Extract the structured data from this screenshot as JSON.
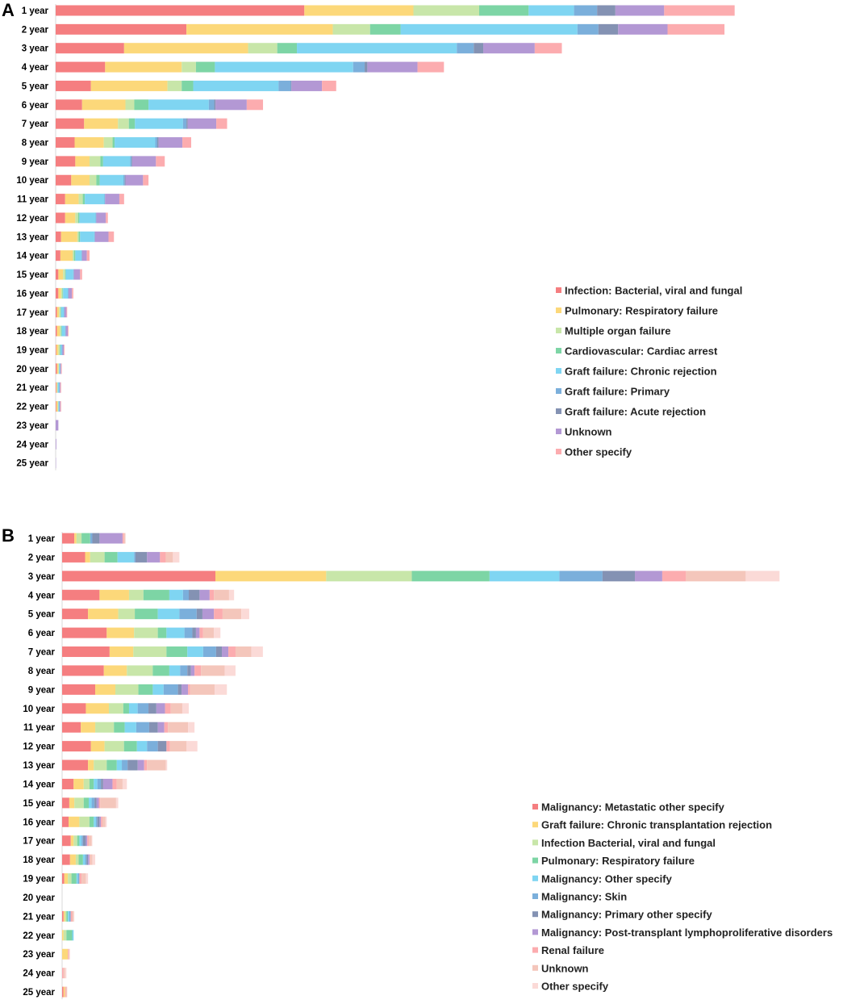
{
  "chart_data": [
    {
      "type": "bar",
      "orientation": "horizontal",
      "stacked": true,
      "panel_label": "A",
      "title": "",
      "xlabel": "",
      "ylabel": "",
      "legend_position": "right",
      "xlim": [
        0,
        1
      ],
      "categories": [
        "1 year",
        "2 year",
        "3 year",
        "4 year",
        "5 year",
        "6 year",
        "7 year",
        "8 year",
        "9 year",
        "10 year",
        "11 year",
        "12 year",
        "13 year",
        "14 year",
        "15 year",
        "16 year",
        "17 year",
        "18 year",
        "19 year",
        "20 year",
        "21 year",
        "22 year",
        "23 year",
        "24 year",
        "25 year"
      ],
      "series": [
        {
          "name": "Infection: Bacterial, viral and fungal",
          "color": "#f57e80",
          "values": [
            0.367,
            0.193,
            0.101,
            0.073,
            0.052,
            0.039,
            0.042,
            0.028,
            0.029,
            0.023,
            0.014,
            0.014,
            0.008,
            0.007,
            0.004,
            0.004,
            0.002,
            0.002,
            0.001,
            0.002,
            0.001,
            0.001,
            0,
            0,
            0
          ]
        },
        {
          "name": "Pulmonary: Respiratory failure",
          "color": "#fcd87a",
          "values": [
            0.161,
            0.216,
            0.183,
            0.113,
            0.113,
            0.064,
            0.05,
            0.043,
            0.021,
            0.027,
            0.02,
            0.015,
            0.024,
            0.018,
            0.007,
            0.004,
            0.003,
            0.004,
            0.003,
            0.002,
            0.001,
            0.002,
            0,
            0,
            0
          ]
        },
        {
          "name": "Multiple organ failure",
          "color": "#c8e6a9",
          "values": [
            0.097,
            0.055,
            0.043,
            0.021,
            0.021,
            0.013,
            0.016,
            0.013,
            0.016,
            0.01,
            0.006,
            0.004,
            0.002,
            0.002,
            0.003,
            0.002,
            0.002,
            0.002,
            0.002,
            0.001,
            0.001,
            0.001,
            0,
            0,
            0
          ]
        },
        {
          "name": "Cardiovascular: Cardiac arrest",
          "color": "#7dd5a5",
          "values": [
            0.073,
            0.045,
            0.029,
            0.028,
            0.017,
            0.021,
            0.009,
            0.003,
            0.004,
            0.005,
            0.003,
            0.002,
            0.002,
            0.002,
            0.001,
            0.001,
            0.001,
            0.001,
            0.001,
            0,
            0,
            0,
            0,
            0,
            0
          ]
        },
        {
          "name": "Graft failure: Chronic rejection",
          "color": "#7fd5f2",
          "values": [
            0.067,
            0.261,
            0.236,
            0.204,
            0.126,
            0.089,
            0.071,
            0.06,
            0.04,
            0.035,
            0.029,
            0.024,
            0.021,
            0.009,
            0.011,
            0.007,
            0.004,
            0.005,
            0.002,
            0.001,
            0.002,
            0.001,
            0,
            0,
            0
          ]
        },
        {
          "name": "Graft failure: Primary",
          "color": "#7bafdb",
          "values": [
            0.034,
            0.031,
            0.025,
            0.017,
            0.018,
            0.008,
            0.005,
            0.003,
            0.002,
            0.002,
            0.001,
            0.001,
            0.001,
            0.001,
            0.001,
            0.001,
            0.001,
            0.001,
            0.001,
            0.001,
            0.001,
            0.001,
            0,
            0,
            0
          ]
        },
        {
          "name": "Graft failure: Acute rejection",
          "color": "#8492b3",
          "values": [
            0.027,
            0.029,
            0.014,
            0.004,
            0.001,
            0.002,
            0.002,
            0.002,
            0.001,
            0.001,
            0,
            0,
            0,
            0,
            0,
            0,
            0,
            0,
            0,
            0,
            0,
            0,
            0,
            0,
            0
          ]
        },
        {
          "name": "Unknown",
          "color": "#b398d4",
          "values": [
            0.072,
            0.073,
            0.076,
            0.074,
            0.045,
            0.046,
            0.042,
            0.035,
            0.035,
            0.026,
            0.021,
            0.014,
            0.02,
            0.007,
            0.009,
            0.005,
            0.003,
            0.003,
            0.002,
            0.001,
            0.001,
            0.001,
            0.004,
            0.001,
            0.0005
          ]
        },
        {
          "name": "Other specify",
          "color": "#fcacaf",
          "values": [
            0.104,
            0.084,
            0.04,
            0.039,
            0.021,
            0.024,
            0.016,
            0.013,
            0.013,
            0.008,
            0.007,
            0.003,
            0.008,
            0.004,
            0.003,
            0.002,
            0.001,
            0.001,
            0.001,
            0.001,
            0.001,
            0.001,
            0,
            0,
            0
          ]
        }
      ]
    },
    {
      "type": "bar",
      "orientation": "horizontal",
      "stacked": true,
      "panel_label": "B",
      "title": "",
      "xlabel": "",
      "ylabel": "",
      "legend_position": "right",
      "xlim": [
        0,
        1
      ],
      "categories": [
        "1 year",
        "2 year",
        "3 year",
        "4 year",
        "5 year",
        "6 year",
        "7 year",
        "8 year",
        "9 year",
        "10 year",
        "11 year",
        "12 year",
        "13 year",
        "14 year",
        "15 year",
        "16 year",
        "17 year",
        "18 year",
        "19 year",
        "20 year",
        "21 year",
        "22 year",
        "23 year",
        "24 year",
        "25 year"
      ],
      "series": [
        {
          "name": "Malignancy: Metastatic other specify",
          "color": "#f57e80",
          "values": [
            0.017,
            0.032,
            0.213,
            0.052,
            0.036,
            0.062,
            0.066,
            0.058,
            0.046,
            0.033,
            0.026,
            0.04,
            0.036,
            0.016,
            0.01,
            0.009,
            0.012,
            0.011,
            0.003,
            0,
            0.002,
            0,
            0,
            0,
            0.002
          ]
        },
        {
          "name": "Graft failure: Chronic transplantation rejection",
          "color": "#fcd87a",
          "values": [
            0.003,
            0.007,
            0.154,
            0.041,
            0.042,
            0.038,
            0.033,
            0.032,
            0.028,
            0.032,
            0.02,
            0.019,
            0.008,
            0.014,
            0.007,
            0.015,
            0.004,
            0.008,
            0.005,
            0,
            0.002,
            0.002,
            0.008,
            0,
            0.002
          ]
        },
        {
          "name": "Infection Bacterial, viral and fungal",
          "color": "#c8e6a9",
          "values": [
            0.007,
            0.02,
            0.119,
            0.02,
            0.023,
            0.033,
            0.046,
            0.036,
            0.032,
            0.02,
            0.026,
            0.027,
            0.018,
            0.008,
            0.013,
            0.014,
            0.005,
            0.004,
            0.005,
            0,
            0.002,
            0.004,
            0,
            0,
            0
          ]
        },
        {
          "name": "Pulmonary: Respiratory failure",
          "color": "#7dd5a5",
          "values": [
            0.012,
            0.018,
            0.108,
            0.036,
            0.032,
            0.012,
            0.029,
            0.023,
            0.02,
            0.008,
            0.015,
            0.018,
            0.014,
            0.006,
            0.007,
            0.006,
            0.003,
            0.006,
            0.007,
            0,
            0.002,
            0.008,
            0,
            0,
            0
          ]
        },
        {
          "name": "Malignancy: Other specify",
          "color": "#7fd5f2",
          "values": [
            0,
            0.023,
            0.097,
            0.019,
            0.03,
            0.025,
            0.022,
            0.015,
            0.015,
            0.012,
            0.016,
            0.014,
            0.007,
            0.005,
            0.004,
            0.003,
            0.003,
            0.003,
            0.002,
            0,
            0.002,
            0.002,
            0,
            0,
            0
          ]
        },
        {
          "name": "Malignancy: Skin",
          "color": "#7bafdb",
          "values": [
            0.003,
            0.002,
            0.06,
            0.008,
            0.024,
            0.011,
            0.018,
            0.01,
            0.02,
            0.015,
            0.018,
            0.015,
            0.008,
            0.005,
            0.004,
            0.002,
            0.002,
            0.002,
            0.002,
            0,
            0.002,
            0,
            0,
            0,
            0
          ]
        },
        {
          "name": "Malignancy: Primary other specify",
          "color": "#8492b3",
          "values": [
            0.01,
            0.016,
            0.045,
            0.015,
            0.008,
            0.005,
            0.008,
            0.005,
            0.005,
            0.011,
            0.012,
            0.012,
            0.014,
            0.003,
            0.003,
            0.003,
            0.004,
            0.002,
            0,
            0,
            0,
            0,
            0,
            0,
            0
          ]
        },
        {
          "name": "Malignancy: Post-transplant lymphoproliferative disorders",
          "color": "#b398d4",
          "values": [
            0.032,
            0.018,
            0.038,
            0.014,
            0.016,
            0.005,
            0.009,
            0.005,
            0.009,
            0.012,
            0.009,
            0,
            0.009,
            0.013,
            0.003,
            0.002,
            0.002,
            0.002,
            0,
            0,
            0,
            0,
            0,
            0,
            0
          ]
        },
        {
          "name": "Renal failure",
          "color": "#fcacaf",
          "values": [
            0.002,
            0.008,
            0.033,
            0.006,
            0.012,
            0.005,
            0.01,
            0.009,
            0.003,
            0.008,
            0.005,
            0.005,
            0.004,
            0.006,
            0.002,
            0.002,
            0.002,
            0.001,
            0.003,
            0,
            0.002,
            0,
            0.001,
            0.002,
            0.001
          ]
        },
        {
          "name": "Unknown",
          "color": "#f4c6bb",
          "values": [
            0.002,
            0.01,
            0.083,
            0.021,
            0.026,
            0.015,
            0.022,
            0.033,
            0.034,
            0.016,
            0.028,
            0.023,
            0.026,
            0.008,
            0.022,
            0.004,
            0.004,
            0.003,
            0.006,
            0,
            0.002,
            0,
            0.001,
            0.002,
            0.002
          ]
        },
        {
          "name": "Other specify",
          "color": "#fbdad7",
          "values": [
            0,
            0.009,
            0.047,
            0.007,
            0.011,
            0.009,
            0.016,
            0.015,
            0.017,
            0.009,
            0.009,
            0.015,
            0.002,
            0.006,
            0.003,
            0.002,
            0.001,
            0.004,
            0.003,
            0,
            0.001,
            0,
            0.001,
            0.002,
            0
          ]
        }
      ]
    }
  ]
}
